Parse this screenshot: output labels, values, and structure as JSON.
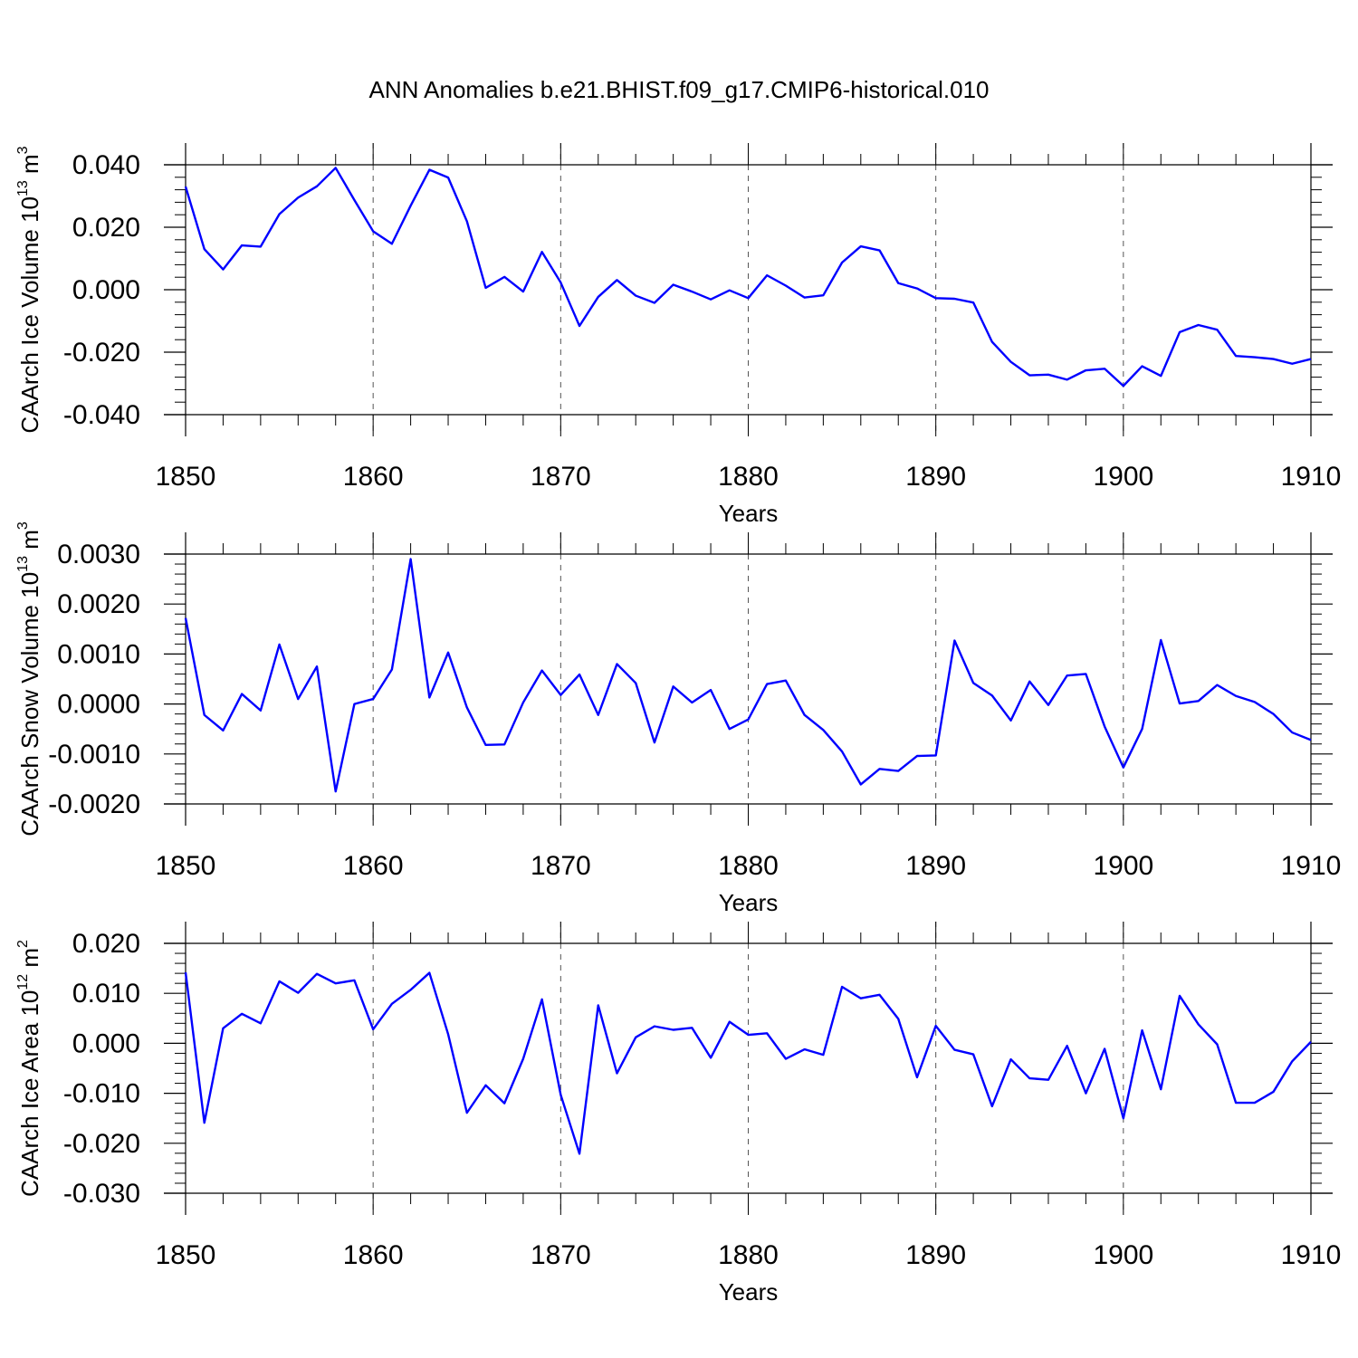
{
  "title": "ANN Anomalies b.e21.BHIST.f09_g17.CMIP6-historical.010",
  "line_color": "#0000ff",
  "chart_data": [
    {
      "type": "line",
      "xlabel": "Years",
      "ylabel": {
        "text": "CAArch Ice Volume 10",
        "sup": "13",
        "unit": " m",
        "unit_sup": "3"
      },
      "xlim": [
        1850,
        1910
      ],
      "ylim": [
        -0.04,
        0.04
      ],
      "x_ticks": [
        1850,
        1860,
        1870,
        1880,
        1890,
        1900,
        1910
      ],
      "y_ticks": [
        -0.04,
        -0.02,
        0.0,
        0.02,
        0.04
      ],
      "y_tick_labels": [
        "-0.040",
        "-0.020",
        "0.000",
        "0.020",
        "0.040"
      ],
      "x_start": 1850,
      "values": [
        0.033,
        0.013,
        0.0065,
        0.0142,
        0.0138,
        0.0242,
        0.0295,
        0.0331,
        0.039,
        0.0287,
        0.0187,
        0.0147,
        0.0269,
        0.0384,
        0.0359,
        0.0219,
        0.0006,
        0.0041,
        -0.0006,
        0.0121,
        0.0023,
        -0.0116,
        -0.0023,
        0.0031,
        -0.0019,
        -0.0042,
        0.0016,
        -0.0006,
        -0.0031,
        -0.0002,
        -0.0027,
        0.0046,
        0.0013,
        -0.0025,
        -0.0018,
        0.0087,
        0.0139,
        0.0126,
        0.0021,
        0.0004,
        -0.0027,
        -0.0029,
        -0.0041,
        -0.0167,
        -0.0231,
        -0.0274,
        -0.0272,
        -0.0288,
        -0.0258,
        -0.0253,
        -0.0308,
        -0.0245,
        -0.0276,
        -0.0136,
        -0.0113,
        -0.0128,
        -0.0212,
        -0.0216,
        -0.0222,
        -0.0237,
        -0.0222
      ]
    },
    {
      "type": "line",
      "xlabel": "Years",
      "ylabel": {
        "text": "CAArch Snow Volume 10",
        "sup": "13",
        "unit": " m",
        "unit_sup": "3"
      },
      "xlim": [
        1850,
        1910
      ],
      "ylim": [
        -0.002,
        0.003
      ],
      "x_ticks": [
        1850,
        1860,
        1870,
        1880,
        1890,
        1900,
        1910
      ],
      "y_ticks": [
        -0.002,
        -0.001,
        0.0,
        0.001,
        0.002,
        0.003
      ],
      "y_tick_labels": [
        "-0.0020",
        "-0.0010",
        "0.0000",
        "0.0010",
        "0.0020",
        "0.0030"
      ],
      "x_start": 1850,
      "values": [
        0.00172,
        -0.00022,
        -0.00053,
        0.0002,
        -0.00013,
        0.00119,
        0.0001,
        0.00075,
        -0.00175,
        0.0,
        0.0001,
        0.00069,
        0.0029,
        0.00013,
        0.00103,
        -7e-05,
        -0.00082,
        -0.00081,
        3e-05,
        0.00067,
        0.00018,
        0.00059,
        -0.00022,
        0.0008,
        0.00042,
        -0.00077,
        0.00035,
        3e-05,
        0.00028,
        -0.0005,
        -0.00031,
        0.0004,
        0.00047,
        -0.00022,
        -0.00052,
        -0.00095,
        -0.00161,
        -0.0013,
        -0.00134,
        -0.00104,
        -0.00103,
        0.00127,
        0.00042,
        0.00017,
        -0.00033,
        0.00045,
        -2e-05,
        0.00057,
        0.0006,
        -0.00045,
        -0.00127,
        -0.0005,
        0.00128,
        1e-05,
        6e-05,
        0.00038,
        0.00016,
        4e-05,
        -0.0002,
        -0.00057,
        -0.00072
      ]
    },
    {
      "type": "line",
      "xlabel": "Years",
      "ylabel": {
        "text": "CAArch Ice Area 10",
        "sup": "12",
        "unit": " m",
        "unit_sup": "2"
      },
      "xlim": [
        1850,
        1910
      ],
      "ylim": [
        -0.03,
        0.02
      ],
      "x_ticks": [
        1850,
        1860,
        1870,
        1880,
        1890,
        1900,
        1910
      ],
      "y_ticks": [
        -0.03,
        -0.02,
        -0.01,
        0.0,
        0.01,
        0.02
      ],
      "y_tick_labels": [
        "-0.030",
        "-0.020",
        "-0.010",
        "0.000",
        "0.010",
        "0.020"
      ],
      "x_start": 1850,
      "values": [
        0.0142,
        -0.0159,
        0.003,
        0.0059,
        0.004,
        0.0124,
        0.0101,
        0.0139,
        0.012,
        0.0126,
        0.0028,
        0.0079,
        0.0107,
        0.0141,
        0.0018,
        -0.0139,
        -0.0084,
        -0.012,
        -0.0031,
        0.0088,
        -0.0103,
        -0.0221,
        0.0076,
        -0.006,
        0.0012,
        0.0034,
        0.0027,
        0.0031,
        -0.0029,
        0.0043,
        0.0017,
        0.002,
        -0.0031,
        -0.0012,
        -0.0023,
        0.0113,
        0.009,
        0.0097,
        0.0049,
        -0.0068,
        0.0035,
        -0.0013,
        -0.0022,
        -0.0126,
        -0.0032,
        -0.007,
        -0.0073,
        -0.0005,
        -0.01,
        -0.0011,
        -0.015,
        0.0026,
        -0.0092,
        0.0095,
        0.0038,
        -0.0002,
        -0.0119,
        -0.0119,
        -0.0097,
        -0.0036,
        0.0003
      ]
    }
  ]
}
